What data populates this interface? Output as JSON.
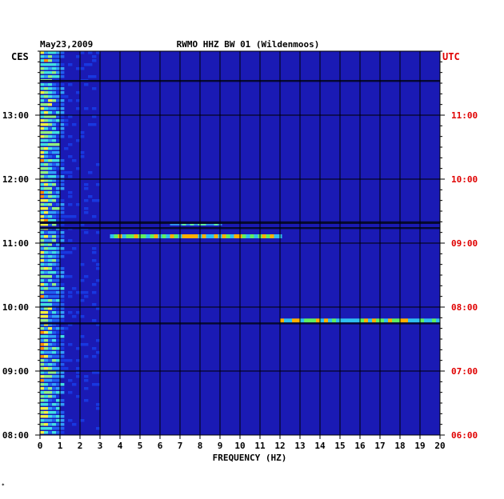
{
  "chart_data": {
    "type": "heatmap",
    "title": "RWMO HHZ BW 01 (Wildenmoos)",
    "date": "May23,2009",
    "left_zone_label": "CES",
    "right_zone_label": "UTC",
    "xlabel": "FREQUENCY (HZ)",
    "xlim": [
      0,
      20
    ],
    "x_ticks": [
      "0",
      "1",
      "2",
      "3",
      "4",
      "5",
      "6",
      "7",
      "8",
      "9",
      "10",
      "11",
      "12",
      "13",
      "14",
      "15",
      "16",
      "17",
      "18",
      "19",
      "20"
    ],
    "y_left_ticks": [
      "08:00",
      "09:00",
      "10:00",
      "11:00",
      "12:00",
      "13:00"
    ],
    "y_right_ticks": [
      "06:00",
      "07:00",
      "08:00",
      "09:00",
      "10:00",
      "11:00"
    ],
    "ylim_hours_local": [
      8.0,
      14.0
    ],
    "grid": true,
    "colors": {
      "background": "#1a1ab4",
      "grid": "#000000",
      "utc_label": "#e00000",
      "low_energy": "#1020c8",
      "high_energy": "#ff2000"
    },
    "events": [
      {
        "t_local": "11:06",
        "f_range_hz": [
          3.5,
          12.0
        ],
        "level": "high"
      },
      {
        "t_local": "09:47",
        "f_range_hz": [
          12.0,
          20.0
        ],
        "level": "high"
      },
      {
        "t_local": "11:18",
        "f_range_hz": [
          6.5,
          9.0
        ],
        "level": "medium"
      }
    ]
  },
  "footer_mark": "*"
}
